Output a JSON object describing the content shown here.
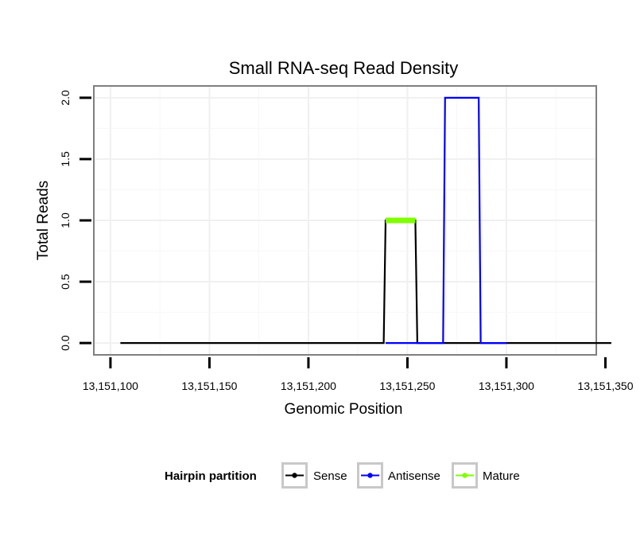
{
  "chart_data": {
    "type": "line",
    "title": "Small RNA-seq Read Density",
    "xlabel": "Genomic Position",
    "ylabel": "Total Reads",
    "xlim": [
      13151092,
      13151345
    ],
    "ylim": [
      -0.09,
      2.09
    ],
    "x_ticks": [
      13151100,
      13151150,
      13151200,
      13151250,
      13151300,
      13151350
    ],
    "x_tick_labels": [
      "13,151,100",
      "13,151,150",
      "13,151,200",
      "13,151,250",
      "13,151,300",
      "13,151,350"
    ],
    "y_ticks": [
      0,
      0.5,
      1,
      1.5,
      2
    ],
    "y_tick_labels": [
      "0.0",
      "0.5",
      "1.0",
      "1.5",
      "2.0"
    ],
    "grid": true,
    "legend_position": "bottom",
    "legend_title": "Hairpin partition",
    "series": [
      {
        "name": "Sense",
        "color": "#000000",
        "x": [
          13151105,
          13151238,
          13151239,
          13151254,
          13151255,
          13151353
        ],
        "y": [
          0,
          0,
          1,
          1,
          0,
          0
        ]
      },
      {
        "name": "Antisense",
        "color": "#0000ff",
        "x": [
          13151239,
          13151254,
          13151255,
          13151268,
          13151269,
          13151286,
          13151287,
          13151300
        ],
        "y": [
          0,
          0,
          0,
          0,
          2,
          2,
          0,
          0
        ]
      },
      {
        "name": "Mature",
        "color": "#7fff00",
        "x": [
          13151239,
          13151254
        ],
        "y": [
          1,
          1
        ]
      }
    ]
  }
}
